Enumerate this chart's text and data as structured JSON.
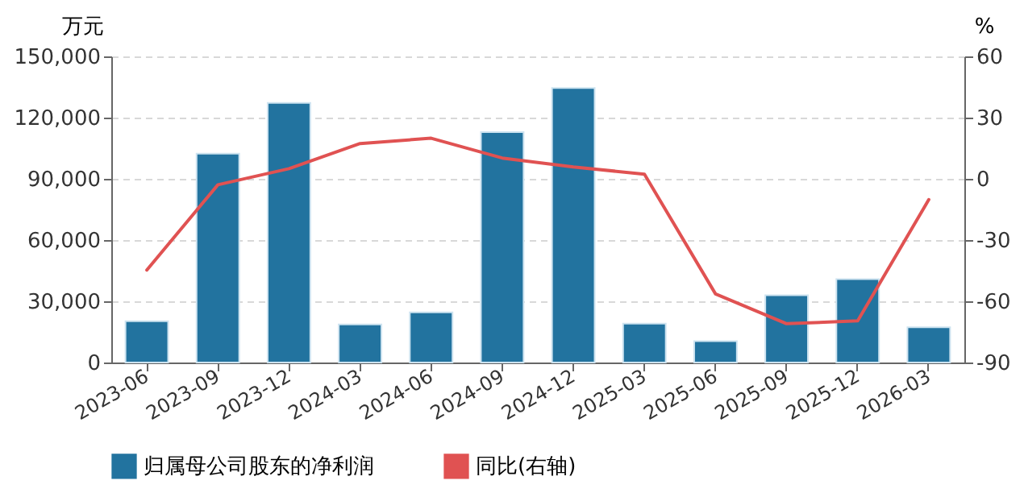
{
  "chart_data": {
    "type": "bar",
    "ylabel": "万元",
    "y2label": "%",
    "categories": [
      "2023-06",
      "2023-09",
      "2023-12",
      "2024-03",
      "2024-06",
      "2024-09",
      "2024-12",
      "2025-03",
      "2025-06",
      "2025-09",
      "2025-12",
      "2026-03"
    ],
    "series": [
      {
        "name": "归属母公司股东的净利润",
        "color": "#22739f",
        "values": [
          20200,
          102300,
          127200,
          18700,
          24600,
          112900,
          134500,
          19000,
          10500,
          33000,
          40900,
          17300
        ]
      },
      {
        "name": "同比(右轴)",
        "type": "line",
        "axis": "y2",
        "color": "#e05252",
        "values": [
          -44.7,
          -2.9,
          5.0,
          17.3,
          19.9,
          10.2,
          5.8,
          2.3,
          -56.4,
          -71.0,
          -69.6,
          -10.2
        ]
      }
    ],
    "ylim": [
      0,
      150000
    ],
    "yticks": [
      0,
      {
        "value": 30000,
        "label": "30,000"
      },
      {
        "value": 60000,
        "label": "60,000"
      },
      {
        "value": 90000,
        "label": "90,000"
      },
      {
        "value": 120000,
        "label": "120,000"
      },
      {
        "value": 150000,
        "label": "150,000"
      }
    ],
    "y2lim": [
      -90,
      60
    ],
    "y2ticks": [
      -90,
      -60,
      -30,
      0,
      30,
      60
    ],
    "grid": "y",
    "legend": "bottom"
  }
}
